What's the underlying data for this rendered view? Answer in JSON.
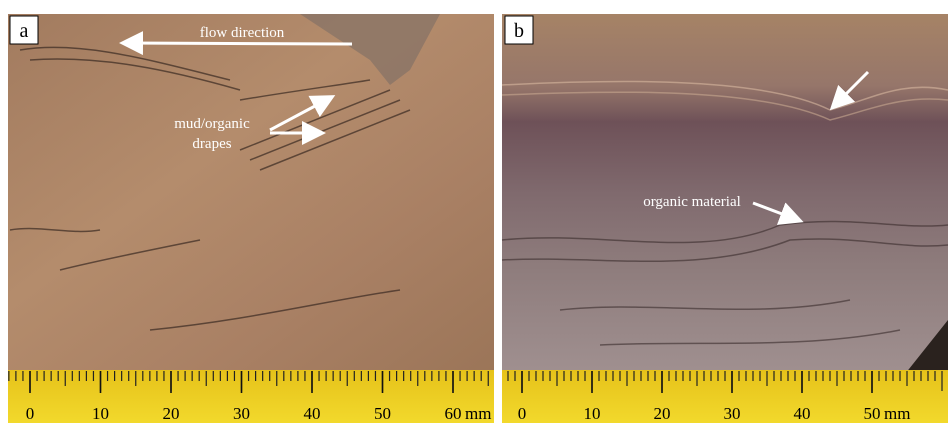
{
  "panels": [
    {
      "label": "a",
      "annotations": [
        "flow direction",
        "mud/organic",
        "drapes"
      ],
      "ruler": {
        "ticks": [
          0,
          10,
          20,
          30,
          40,
          50,
          60
        ],
        "unit": "mm"
      }
    },
    {
      "label": "b",
      "annotations": [
        "organic material"
      ],
      "ruler": {
        "ticks": [
          0,
          10,
          20,
          30,
          40,
          50
        ],
        "unit": "mm"
      }
    }
  ]
}
